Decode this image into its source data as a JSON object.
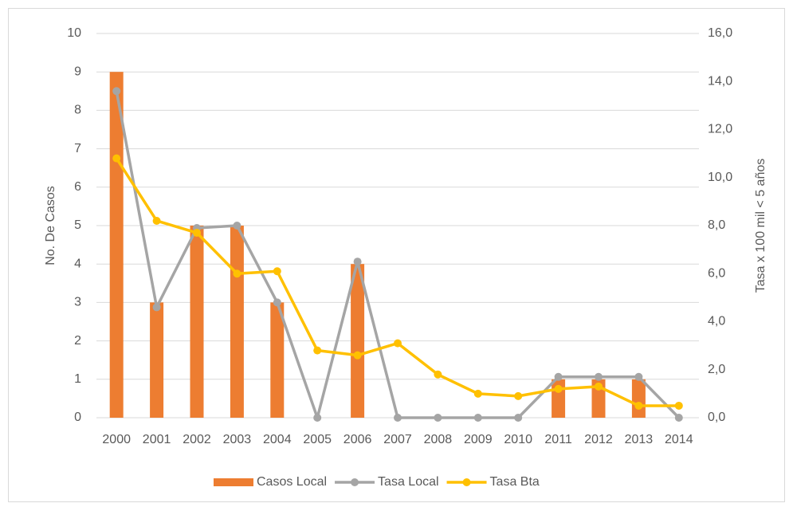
{
  "chart_data": {
    "type": "bar",
    "ylabel": "No. De Casos",
    "y2label": "Tasa x 100 mil < 5 años",
    "categories": [
      "2000",
      "2001",
      "2002",
      "2003",
      "2004",
      "2005",
      "2006",
      "2007",
      "2008",
      "2009",
      "2010",
      "2011",
      "2012",
      "2013",
      "2014"
    ],
    "series": [
      {
        "name": "Casos Local",
        "type": "bar",
        "color": "#ED7D31",
        "values": [
          9,
          3,
          5,
          5,
          3,
          0,
          4,
          0,
          0,
          0,
          0,
          1,
          1,
          1,
          0
        ]
      },
      {
        "name": "Tasa Local",
        "type": "line",
        "axis": "y2",
        "color": "#A5A5A5",
        "values": [
          13.6,
          4.6,
          7.9,
          8.0,
          4.8,
          0,
          6.5,
          0,
          0,
          0,
          0,
          1.7,
          1.7,
          1.7,
          0
        ]
      },
      {
        "name": "Tasa Bta",
        "type": "line",
        "axis": "y2",
        "color": "#FFC000",
        "values": [
          10.8,
          8.2,
          7.7,
          6.0,
          6.1,
          2.8,
          2.6,
          3.1,
          1.8,
          1.0,
          0.9,
          1.2,
          1.3,
          0.5,
          0.5
        ]
      }
    ],
    "ylim": [
      0,
      10
    ],
    "yticks": [
      0,
      1,
      2,
      3,
      4,
      5,
      6,
      7,
      8,
      9,
      10
    ],
    "y2lim": [
      0,
      16
    ],
    "y2ticks": [
      {
        "value": 0,
        "label": "0,0"
      },
      {
        "value": 2,
        "label": "2,0"
      },
      {
        "value": 4,
        "label": "4,0"
      },
      {
        "value": 6,
        "label": "6,0"
      },
      {
        "value": 8,
        "label": "8,0"
      },
      {
        "value": 10,
        "label": "10,0"
      },
      {
        "value": 12,
        "label": "12,0"
      },
      {
        "value": 14,
        "label": "14,0"
      },
      {
        "value": 16,
        "label": "16,0"
      }
    ],
    "grid": true,
    "legend": "bottom"
  }
}
